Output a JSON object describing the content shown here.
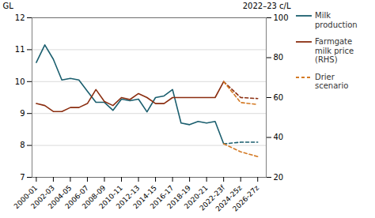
{
  "chart_data": {
    "type": "line",
    "xlim": [
      -0.5,
      27
    ],
    "xticks": [
      {
        "value": 0,
        "label": "2000-01"
      },
      {
        "value": 2,
        "label": "2002-03"
      },
      {
        "value": 4,
        "label": "2004-05"
      },
      {
        "value": 6,
        "label": "2006-07"
      },
      {
        "value": 8,
        "label": "2008-09"
      },
      {
        "value": 10,
        "label": "2010-11"
      },
      {
        "value": 12,
        "label": "2012-13"
      },
      {
        "value": 14,
        "label": "2014-15"
      },
      {
        "value": 16,
        "label": "2016-17"
      },
      {
        "value": 18,
        "label": "2018-19"
      },
      {
        "value": 20,
        "label": "2020-21"
      },
      {
        "value": 22,
        "label": "2022-23f"
      },
      {
        "value": 24,
        "label": "2024-25z"
      },
      {
        "value": 26,
        "label": "2026-27z"
      }
    ],
    "ylim": [
      7,
      12
    ],
    "yticks": [
      7,
      8,
      9,
      10,
      11,
      12
    ],
    "y2lim": [
      20,
      100
    ],
    "y2ticks": [
      20,
      40,
      60,
      80,
      100
    ],
    "ylabel": "GL",
    "y2label": "2022–23 c/L",
    "grid": true,
    "legend": "right",
    "series": [
      {
        "name": "Milk\nproduction",
        "color": "#1a5e6e",
        "line_style": "solid",
        "x": [
          0,
          1,
          2,
          3,
          4,
          5,
          6,
          7,
          8,
          9,
          10,
          11,
          12,
          13,
          14,
          15,
          16,
          17,
          18,
          19,
          20,
          21,
          22
        ],
        "values": [
          10.6,
          11.15,
          10.7,
          10.05,
          10.1,
          10.05,
          9.7,
          9.35,
          9.35,
          9.1,
          9.45,
          9.4,
          9.45,
          9.05,
          9.5,
          9.55,
          9.75,
          8.7,
          8.65,
          8.75,
          8.7,
          8.75,
          8.05
        ]
      },
      {
        "color": "#1a5e6e",
        "line_style": "dashed",
        "x": [
          22,
          24,
          26
        ],
        "values": [
          8.05,
          8.1,
          8.1
        ]
      },
      {
        "name": "Farmgate\nmilk price\n(RHS)",
        "color": "#8b2e10",
        "line_style": "solid",
        "axis": "y2",
        "x": [
          0,
          1,
          2,
          3,
          4,
          5,
          6,
          7,
          8,
          9,
          10,
          11,
          12,
          13,
          14,
          15,
          16,
          17,
          18,
          19,
          20,
          21,
          22
        ],
        "values": [
          57,
          56,
          53,
          53,
          55,
          55,
          57,
          64,
          58,
          56,
          60,
          59,
          62,
          60,
          57,
          57,
          60,
          60,
          60,
          60,
          60,
          60,
          68
        ]
      },
      {
        "color": "#8b2e10",
        "line_style": "dashed",
        "axis": "y2",
        "x": [
          22,
          24,
          26
        ],
        "values": [
          68,
          60,
          59.5
        ]
      },
      {
        "name": "Drier\nscenario",
        "color": "#d47a25",
        "line_style": "dashed",
        "x": [
          22,
          24,
          26
        ],
        "values": [
          8.05,
          7.8,
          7.65
        ]
      },
      {
        "color": "#d47a25",
        "line_style": "dashed",
        "axis": "y2",
        "x": [
          22,
          24,
          26
        ],
        "values": [
          68,
          57.5,
          56.5
        ]
      }
    ]
  }
}
